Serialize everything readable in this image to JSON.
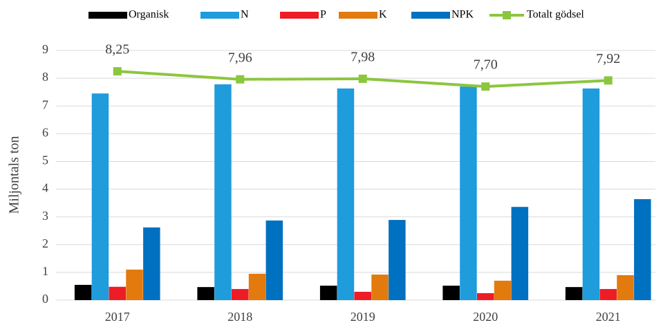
{
  "chart_data": {
    "type": "bar",
    "y_label": "Miljontals ton",
    "categories": [
      "2017",
      "2018",
      "2019",
      "2020",
      "2021"
    ],
    "series": [
      {
        "name": "Organisk",
        "color": "#000000",
        "values": [
          0.55,
          0.47,
          0.52,
          0.52,
          0.47
        ]
      },
      {
        "name": "N",
        "color": "#1e9cdc",
        "values": [
          7.45,
          7.78,
          7.63,
          7.7,
          7.63
        ]
      },
      {
        "name": "P",
        "color": "#ee1c25",
        "values": [
          0.48,
          0.4,
          0.3,
          0.25,
          0.4
        ]
      },
      {
        "name": "K",
        "color": "#e27a0e",
        "values": [
          1.1,
          0.95,
          0.92,
          0.7,
          0.9
        ]
      },
      {
        "name": "NPK",
        "color": "#0070c0",
        "values": [
          2.62,
          2.87,
          2.89,
          3.36,
          3.64
        ]
      },
      {
        "name": "Totalt gödsel",
        "type": "line",
        "color": "#8cc63f",
        "values": [
          8.25,
          7.96,
          7.98,
          7.7,
          7.92
        ],
        "value_labels": [
          "8,25",
          "7,96",
          "7,98",
          "7,70",
          "7,92"
        ]
      }
    ],
    "ylim": [
      0,
      9
    ],
    "yticks": [
      0,
      1,
      2,
      3,
      4,
      5,
      6,
      7,
      8,
      9
    ],
    "grid": true,
    "legend": "top"
  }
}
